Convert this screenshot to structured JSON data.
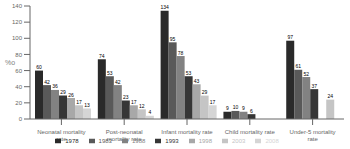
{
  "chart_data": {
    "type": "bar",
    "ylabel": "%o",
    "categories": [
      "Neonatal mortality\nrate",
      "Post-neonatal\nmortality rate",
      "Infant mortality rate",
      "Child mortality rate",
      "Under-5 mortality\nrate"
    ],
    "series": [
      {
        "name": "1978",
        "color": "#2a2a2a",
        "values": [
          60,
          74,
          134,
          9,
          97
        ]
      },
      {
        "name": "1983",
        "color": "#595959",
        "values": [
          42,
          53,
          95,
          10,
          61
        ]
      },
      {
        "name": "1988",
        "color": "#828282",
        "values": [
          36,
          42,
          78,
          9,
          52
        ]
      },
      {
        "name": "1993",
        "color": "#363636",
        "values": [
          29,
          23,
          53,
          6,
          37
        ]
      },
      {
        "name": "1998",
        "color": "#a8a8a8",
        "values": [
          26,
          17,
          43,
          null,
          null
        ]
      },
      {
        "name": "2003",
        "color": "#c5c5c5",
        "values": [
          17,
          12,
          29,
          null,
          24
        ]
      },
      {
        "name": "2008",
        "color": "#d5d5d5",
        "values": [
          13,
          4,
          17,
          null,
          null
        ]
      }
    ],
    "ylim": [
      0,
      140
    ],
    "yticks": [
      0,
      20,
      40,
      60,
      80,
      100,
      120,
      140
    ],
    "data_labels": true,
    "grid": false,
    "legend": "bottom"
  }
}
